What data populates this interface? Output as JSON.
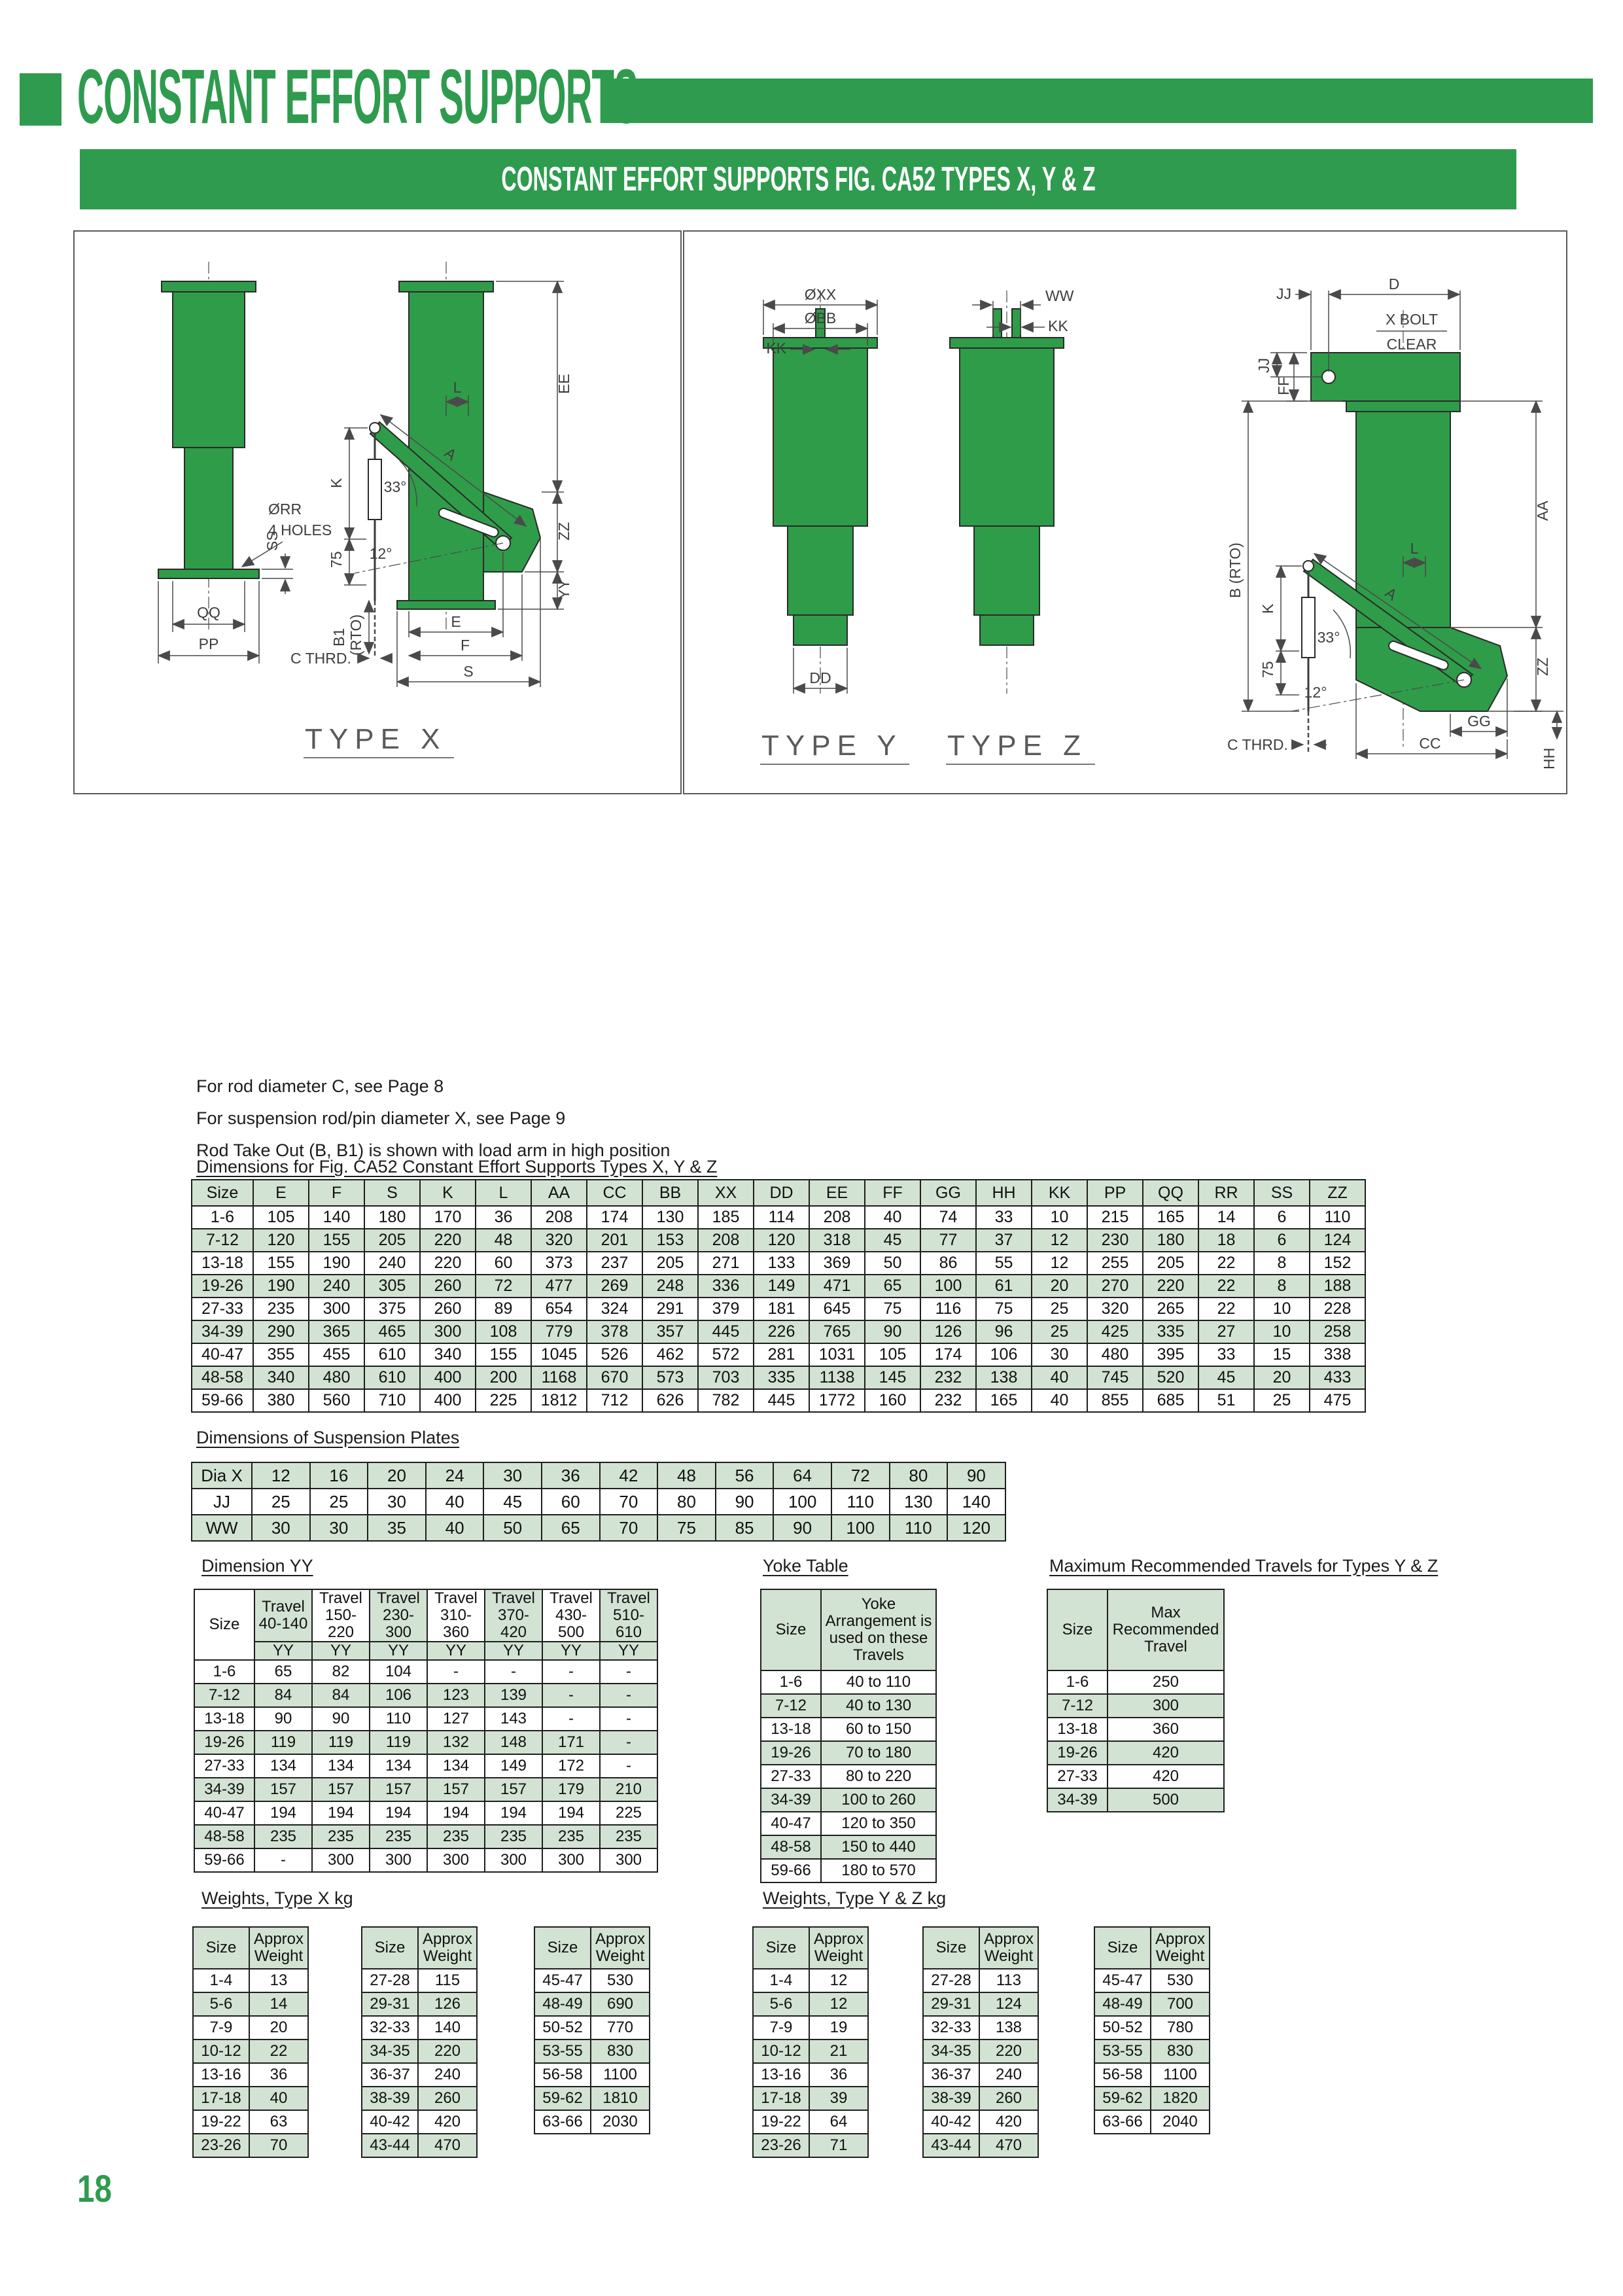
{
  "page": {
    "number": "18"
  },
  "header": {
    "title": "CONSTANT EFFORT SUPPORTS",
    "banner": "CONSTANT EFFORT SUPPORTS FIG. CA52 TYPES X, Y & Z"
  },
  "colors": {
    "green": "#2E9B4E",
    "drawing_green": "#2F9C49",
    "stripe": "#D3E3D3"
  },
  "notes": [
    "For rod diameter C, see Page 8",
    "For suspension rod/pin diameter X, see Page 9",
    "Rod Take Out (B, B1) is shown with load arm in high position"
  ],
  "figures": {
    "x": {
      "title": "TYPE X",
      "qq": "QQ",
      "pp": "PP",
      "rr": "ØRR",
      "holes": "4 HOLES",
      "ss": "SS",
      "k": "K",
      "d75": "75",
      "b1": "B1",
      "rto": "(RTO)",
      "cthrd": "C THRD.",
      "a": "A",
      "l": "L",
      "a33": "33°",
      "a12": "12°",
      "ee": "EE",
      "zz": "ZZ",
      "yy": "YY",
      "e": "E",
      "f": "F",
      "s": "S"
    },
    "yz": {
      "title_y": "TYPE Y",
      "title_z": "TYPE Z",
      "xx": "ØXX",
      "bb": "ØBB",
      "kk_y": "KK",
      "dd": "DD",
      "ww": "WW",
      "kk_z": "KK",
      "jj_top": "JJ",
      "d": "D",
      "jj_side": "JJ",
      "ff": "FF",
      "xbolt": "X BOLT",
      "clear": "CLEAR",
      "b_rto": "B (RTO)",
      "aa": "AA",
      "l": "L",
      "a": "A",
      "k": "K",
      "d75": "75",
      "a33": "33°",
      "a12": "12°",
      "zz": "ZZ",
      "gg": "GG",
      "hh": "HH",
      "cc": "CC",
      "cthrd": "C THRD."
    }
  },
  "dim_table": {
    "heading": "Dimensions for Fig. CA52 Constant Effort Supports Types X, Y & Z",
    "columns": [
      "Size",
      "E",
      "F",
      "S",
      "K",
      "L",
      "AA",
      "CC",
      "BB",
      "XX",
      "DD",
      "EE",
      "FF",
      "GG",
      "HH",
      "KK",
      "PP",
      "QQ",
      "RR",
      "SS",
      "ZZ"
    ],
    "rows": [
      [
        "1-6",
        "105",
        "140",
        "180",
        "170",
        "36",
        "208",
        "174",
        "130",
        "185",
        "114",
        "208",
        "40",
        "74",
        "33",
        "10",
        "215",
        "165",
        "14",
        "6",
        "110"
      ],
      [
        "7-12",
        "120",
        "155",
        "205",
        "220",
        "48",
        "320",
        "201",
        "153",
        "208",
        "120",
        "318",
        "45",
        "77",
        "37",
        "12",
        "230",
        "180",
        "18",
        "6",
        "124"
      ],
      [
        "13-18",
        "155",
        "190",
        "240",
        "220",
        "60",
        "373",
        "237",
        "205",
        "271",
        "133",
        "369",
        "50",
        "86",
        "55",
        "12",
        "255",
        "205",
        "22",
        "8",
        "152"
      ],
      [
        "19-26",
        "190",
        "240",
        "305",
        "260",
        "72",
        "477",
        "269",
        "248",
        "336",
        "149",
        "471",
        "65",
        "100",
        "61",
        "20",
        "270",
        "220",
        "22",
        "8",
        "188"
      ],
      [
        "27-33",
        "235",
        "300",
        "375",
        "260",
        "89",
        "654",
        "324",
        "291",
        "379",
        "181",
        "645",
        "75",
        "116",
        "75",
        "25",
        "320",
        "265",
        "22",
        "10",
        "228"
      ],
      [
        "34-39",
        "290",
        "365",
        "465",
        "300",
        "108",
        "779",
        "378",
        "357",
        "445",
        "226",
        "765",
        "90",
        "126",
        "96",
        "25",
        "425",
        "335",
        "27",
        "10",
        "258"
      ],
      [
        "40-47",
        "355",
        "455",
        "610",
        "340",
        "155",
        "1045",
        "526",
        "462",
        "572",
        "281",
        "1031",
        "105",
        "174",
        "106",
        "30",
        "480",
        "395",
        "33",
        "15",
        "338"
      ],
      [
        "48-58",
        "340",
        "480",
        "610",
        "400",
        "200",
        "1168",
        "670",
        "573",
        "703",
        "335",
        "1138",
        "145",
        "232",
        "138",
        "40",
        "745",
        "520",
        "45",
        "20",
        "433"
      ],
      [
        "59-66",
        "380",
        "560",
        "710",
        "400",
        "225",
        "1812",
        "712",
        "626",
        "782",
        "445",
        "1772",
        "160",
        "232",
        "165",
        "40",
        "855",
        "685",
        "51",
        "25",
        "475"
      ]
    ]
  },
  "suspension_table": {
    "heading": "Dimensions of Suspension Plates",
    "rows": [
      [
        "Dia X",
        "12",
        "16",
        "20",
        "24",
        "30",
        "36",
        "42",
        "48",
        "56",
        "64",
        "72",
        "80",
        "90"
      ],
      [
        "JJ",
        "25",
        "25",
        "30",
        "40",
        "45",
        "60",
        "70",
        "80",
        "90",
        "100",
        "110",
        "130",
        "140"
      ],
      [
        "WW",
        "30",
        "30",
        "35",
        "40",
        "50",
        "65",
        "70",
        "75",
        "85",
        "90",
        "100",
        "110",
        "120"
      ]
    ]
  },
  "yy_table": {
    "heading": "Dimension YY",
    "size_label": "Size",
    "sub_label": "YY",
    "travel_cols": [
      "Travel\n40-140",
      "Travel\n150-\n220",
      "Travel\n230-\n300",
      "Travel\n310-\n360",
      "Travel\n370-\n420",
      "Travel\n430-\n500",
      "Travel\n510-\n610"
    ],
    "rows": [
      [
        "1-6",
        "65",
        "82",
        "104",
        "-",
        "-",
        "-",
        "-"
      ],
      [
        "7-12",
        "84",
        "84",
        "106",
        "123",
        "139",
        "-",
        "-"
      ],
      [
        "13-18",
        "90",
        "90",
        "110",
        "127",
        "143",
        "-",
        "-"
      ],
      [
        "19-26",
        "119",
        "119",
        "119",
        "132",
        "148",
        "171",
        "-"
      ],
      [
        "27-33",
        "134",
        "134",
        "134",
        "134",
        "149",
        "172",
        "-"
      ],
      [
        "34-39",
        "157",
        "157",
        "157",
        "157",
        "157",
        "179",
        "210"
      ],
      [
        "40-47",
        "194",
        "194",
        "194",
        "194",
        "194",
        "194",
        "225"
      ],
      [
        "48-58",
        "235",
        "235",
        "235",
        "235",
        "235",
        "235",
        "235"
      ],
      [
        "59-66",
        "-",
        "300",
        "300",
        "300",
        "300",
        "300",
        "300"
      ]
    ]
  },
  "yoke_table": {
    "heading": "Yoke Table",
    "columns": [
      "Size",
      "Yoke\nArrangement is\nused on these\nTravels"
    ],
    "rows": [
      [
        "1-6",
        "40 to 110"
      ],
      [
        "7-12",
        "40 to 130"
      ],
      [
        "13-18",
        "60 to 150"
      ],
      [
        "19-26",
        "70 to 180"
      ],
      [
        "27-33",
        "80 to 220"
      ],
      [
        "34-39",
        "100 to 260"
      ],
      [
        "40-47",
        "120 to 350"
      ],
      [
        "48-58",
        "150 to 440"
      ],
      [
        "59-66",
        "180 to 570"
      ]
    ]
  },
  "max_table": {
    "heading": "Maximum Recommended Travels for Types Y & Z",
    "columns": [
      "Size",
      "Max\nRecommended\nTravel"
    ],
    "rows": [
      [
        "1-6",
        "250"
      ],
      [
        "7-12",
        "300"
      ],
      [
        "13-18",
        "360"
      ],
      [
        "19-26",
        "420"
      ],
      [
        "27-33",
        "420"
      ],
      [
        "34-39",
        "500"
      ]
    ]
  },
  "weights_labels": {
    "size": "Size",
    "weight": "Approx\nWeight"
  },
  "weights_x": {
    "heading": "Weights, Type X kg",
    "tables": [
      [
        [
          "1-4",
          "13"
        ],
        [
          "5-6",
          "14"
        ],
        [
          "7-9",
          "20"
        ],
        [
          "10-12",
          "22"
        ],
        [
          "13-16",
          "36"
        ],
        [
          "17-18",
          "40"
        ],
        [
          "19-22",
          "63"
        ],
        [
          "23-26",
          "70"
        ]
      ],
      [
        [
          "27-28",
          "115"
        ],
        [
          "29-31",
          "126"
        ],
        [
          "32-33",
          "140"
        ],
        [
          "34-35",
          "220"
        ],
        [
          "36-37",
          "240"
        ],
        [
          "38-39",
          "260"
        ],
        [
          "40-42",
          "420"
        ],
        [
          "43-44",
          "470"
        ]
      ],
      [
        [
          "45-47",
          "530"
        ],
        [
          "48-49",
          "690"
        ],
        [
          "50-52",
          "770"
        ],
        [
          "53-55",
          "830"
        ],
        [
          "56-58",
          "1100"
        ],
        [
          "59-62",
          "1810"
        ],
        [
          "63-66",
          "2030"
        ]
      ]
    ]
  },
  "weights_yz": {
    "heading": "Weights, Type Y & Z kg",
    "tables": [
      [
        [
          "1-4",
          "12"
        ],
        [
          "5-6",
          "12"
        ],
        [
          "7-9",
          "19"
        ],
        [
          "10-12",
          "21"
        ],
        [
          "13-16",
          "36"
        ],
        [
          "17-18",
          "39"
        ],
        [
          "19-22",
          "64"
        ],
        [
          "23-26",
          "71"
        ]
      ],
      [
        [
          "27-28",
          "113"
        ],
        [
          "29-31",
          "124"
        ],
        [
          "32-33",
          "138"
        ],
        [
          "34-35",
          "220"
        ],
        [
          "36-37",
          "240"
        ],
        [
          "38-39",
          "260"
        ],
        [
          "40-42",
          "420"
        ],
        [
          "43-44",
          "470"
        ]
      ],
      [
        [
          "45-47",
          "530"
        ],
        [
          "48-49",
          "700"
        ],
        [
          "50-52",
          "780"
        ],
        [
          "53-55",
          "830"
        ],
        [
          "56-58",
          "1100"
        ],
        [
          "59-62",
          "1820"
        ],
        [
          "63-66",
          "2040"
        ]
      ]
    ]
  }
}
